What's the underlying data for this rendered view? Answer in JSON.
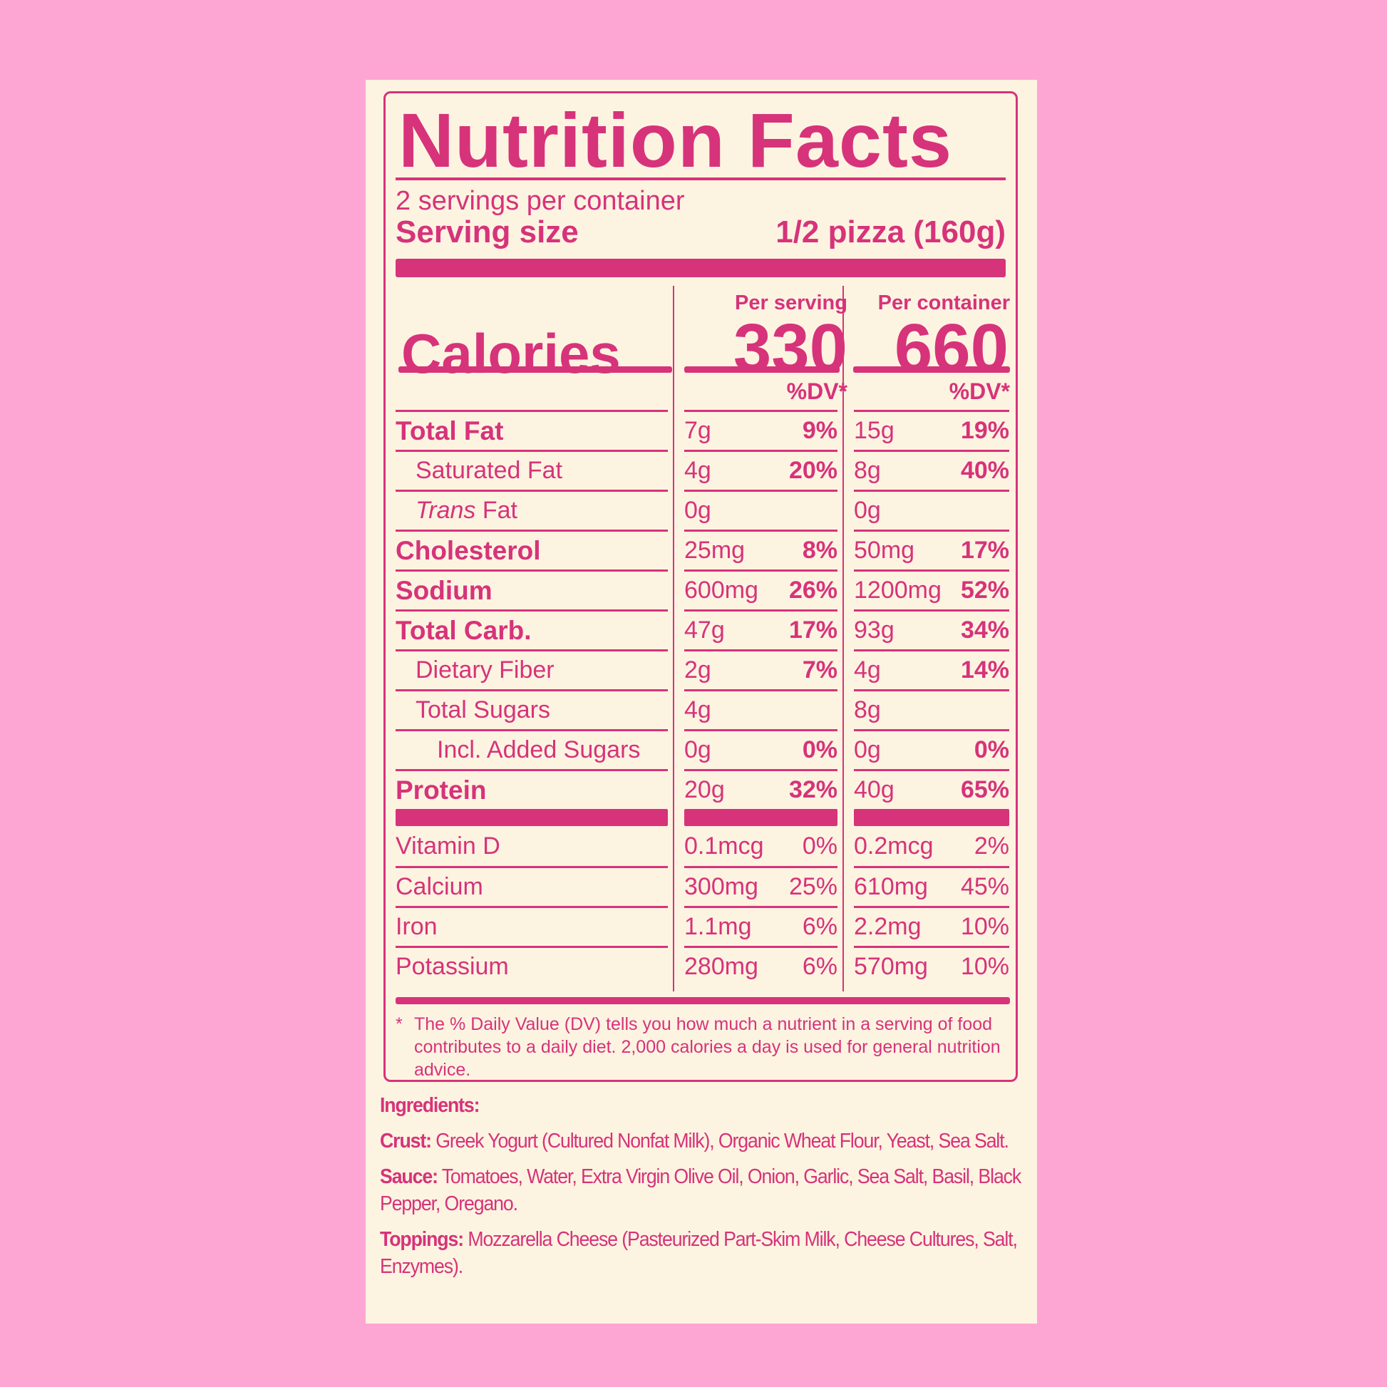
{
  "title": "Nutrition Facts",
  "servings_per_container": "2 servings per container",
  "serving_size": {
    "label": "Serving size",
    "value": "1/2 pizza (160g)"
  },
  "calories": {
    "label": "Calories",
    "per_serving_header": "Per serving",
    "per_container_header": "Per container",
    "per_serving": "330",
    "per_container": "660"
  },
  "dv_header": "%DV*",
  "nutrients": [
    {
      "name": "Total Fat",
      "style": "bold",
      "serving": "7g",
      "serving_dv": "9%",
      "container": "15g",
      "container_dv": "19%"
    },
    {
      "name": "Saturated Fat",
      "style": "indent1",
      "serving": "4g",
      "serving_dv": "20%",
      "container": "8g",
      "container_dv": "40%"
    },
    {
      "name_italic": "Trans",
      "name": " Fat",
      "style": "indent1",
      "serving": "0g",
      "serving_dv": "",
      "container": "0g",
      "container_dv": ""
    },
    {
      "name": "Cholesterol",
      "style": "bold",
      "serving": "25mg",
      "serving_dv": "8%",
      "container": "50mg",
      "container_dv": "17%"
    },
    {
      "name": "Sodium",
      "style": "bold",
      "serving": "600mg",
      "serving_dv": "26%",
      "container": "1200mg",
      "container_dv": "52%"
    },
    {
      "name": "Total Carb.",
      "style": "bold",
      "serving": "47g",
      "serving_dv": "17%",
      "container": "93g",
      "container_dv": "34%"
    },
    {
      "name": "Dietary Fiber",
      "style": "indent1",
      "serving": "2g",
      "serving_dv": "7%",
      "container": "4g",
      "container_dv": "14%"
    },
    {
      "name": "Total Sugars",
      "style": "indent1",
      "serving": "4g",
      "serving_dv": "",
      "container": "8g",
      "container_dv": ""
    },
    {
      "name": "Incl. Added Sugars",
      "style": "indent2",
      "serving": "0g",
      "serving_dv": "0%",
      "container": "0g",
      "container_dv": "0%"
    },
    {
      "name": "Protein",
      "style": "bold",
      "serving": "20g",
      "serving_dv": "32%",
      "container": "40g",
      "container_dv": "65%"
    }
  ],
  "vitamins": [
    {
      "name": "Vitamin D",
      "serving": "0.1mcg",
      "serving_dv": "0%",
      "container": "0.2mcg",
      "container_dv": "2%"
    },
    {
      "name": "Calcium",
      "serving": "300mg",
      "serving_dv": "25%",
      "container": "610mg",
      "container_dv": "45%"
    },
    {
      "name": "Iron",
      "serving": "1.1mg",
      "serving_dv": "6%",
      "container": "2.2mg",
      "container_dv": "10%"
    },
    {
      "name": "Potassium",
      "serving": "280mg",
      "serving_dv": "6%",
      "container": "570mg",
      "container_dv": "10%"
    }
  ],
  "footnote": {
    "star": "*",
    "text": "The % Daily Value (DV) tells you how much a nutrient in a serving of food contributes to a daily diet. 2,000 calories a day is used for general nutrition advice."
  },
  "ingredients": {
    "heading": "Ingredients:",
    "sections": [
      {
        "label": "Crust:",
        "text": " Greek Yogurt (Cultured Nonfat Milk), Organic Wheat Flour, Yeast, Sea Salt."
      },
      {
        "label": "Sauce:",
        "text": " Tomatoes, Water, Extra Virgin Olive Oil, Onion, Garlic, Sea Salt, Basil, Black Pepper, Oregano."
      },
      {
        "label": "Toppings:",
        "text": " Mozzarella Cheese (Pasteurized Part-Skim Milk, Cheese Cultures, Salt, Enzymes)."
      }
    ]
  },
  "colors": {
    "background": "#FDA6D4",
    "panel": "#FDF3E1",
    "accent": "#D6337A"
  }
}
